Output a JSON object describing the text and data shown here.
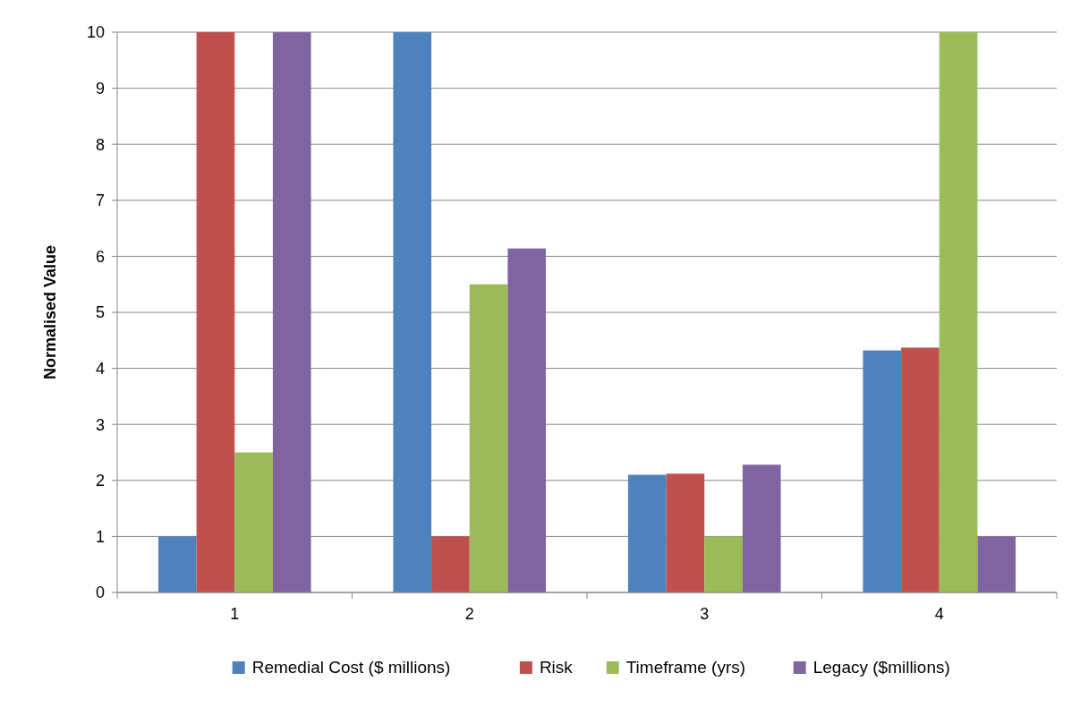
{
  "chart_data": {
    "type": "bar",
    "ylabel": "Normalised Value",
    "categories": [
      "1",
      "2",
      "3",
      "4"
    ],
    "series": [
      {
        "name": "Remedial Cost ($ millions)",
        "color": "#4f81bd",
        "values": [
          1,
          10,
          2.1,
          4.32
        ]
      },
      {
        "name": "Risk",
        "color": "#c0504d",
        "values": [
          10,
          1,
          2.12,
          4.37
        ]
      },
      {
        "name": "Timeframe (yrs)",
        "color": "#9bbb59",
        "values": [
          2.5,
          5.5,
          1,
          10
        ]
      },
      {
        "name": "Legacy ($millions)",
        "color": "#8064a2",
        "values": [
          10,
          6.14,
          2.28,
          1
        ]
      }
    ],
    "ylim": [
      0,
      10
    ],
    "yticks": [
      0,
      1,
      2,
      3,
      4,
      5,
      6,
      7,
      8,
      9,
      10
    ],
    "grid": "y",
    "legend": "bottom"
  }
}
